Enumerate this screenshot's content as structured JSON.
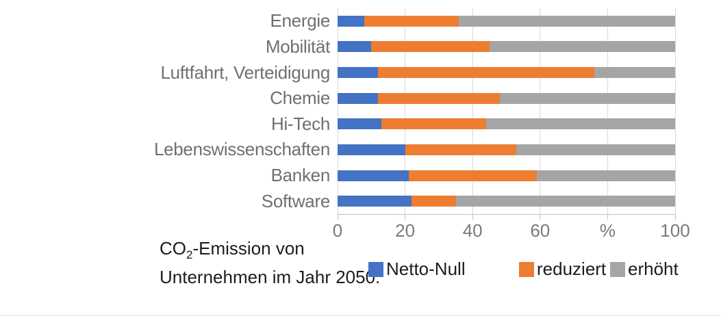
{
  "chart_data": {
    "type": "bar",
    "orientation": "horizontal",
    "stacked": true,
    "stacked_to_100_percent": true,
    "title": "",
    "xlabel": "%",
    "ylabel": "",
    "grid": true,
    "legend_position": "bottom",
    "categories": [
      "Energie",
      "Mobilität",
      "Luftfahrt, Verteidigung",
      "Chemie",
      "Hi-Tech",
      "Lebenswissenschaften",
      "Banken",
      "Software"
    ],
    "series": [
      {
        "name": "Netto-Null",
        "color": "#4472C4",
        "values": [
          8,
          10,
          12,
          12,
          13,
          20,
          21,
          22
        ]
      },
      {
        "name": "reduziert",
        "color": "#ED7D31",
        "values": [
          28,
          35,
          64,
          36,
          31,
          33,
          38,
          13
        ]
      },
      {
        "name": "erhöht",
        "color": "#A5A5A5",
        "values": [
          64,
          55,
          24,
          52,
          56,
          47,
          41,
          65
        ]
      }
    ],
    "x_axis": {
      "min": 0,
      "max": 100,
      "tick_values": [
        0,
        20,
        40,
        60,
        80,
        100
      ],
      "tick_labels": [
        "0",
        "20",
        "40",
        "60",
        "%",
        "100"
      ]
    },
    "legend": {
      "title_prefix": "CO",
      "title_subscript": "2",
      "title_line1_rest": "-Emission von",
      "title_line2": "Unternehmen im Jahr 2050:",
      "items": [
        "Netto-Null",
        "reduziert",
        "erhöht"
      ]
    },
    "colors": {
      "gridline": "#d9d9d9",
      "axis": "#bfbfbf",
      "category_text": "#6f6f6f",
      "tick_text": "#7a7a7a",
      "legend_text": "#1c1c1c"
    }
  }
}
